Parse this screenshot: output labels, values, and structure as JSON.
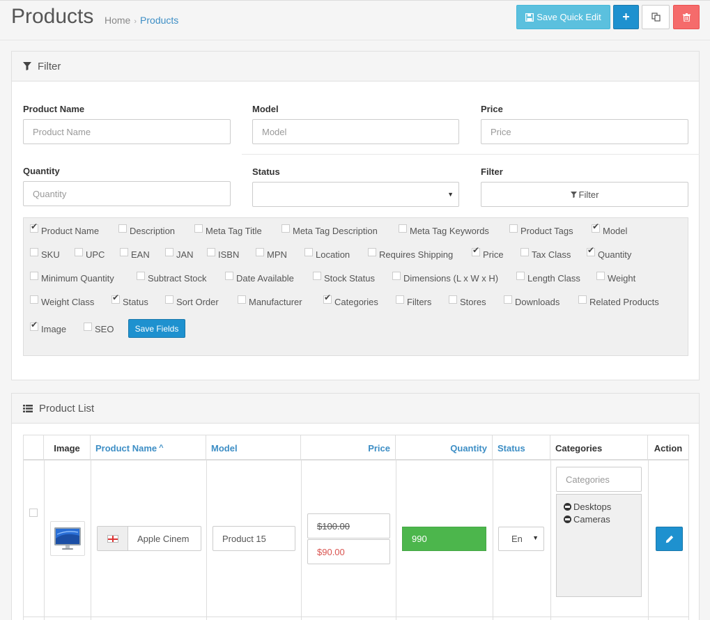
{
  "header": {
    "title": "Products",
    "breadcrumb": [
      "Home",
      "Products"
    ],
    "save_quick_edit": "Save Quick Edit"
  },
  "filter": {
    "heading": "Filter",
    "product_name_label": "Product Name",
    "product_name_placeholder": "Product Name",
    "model_label": "Model",
    "model_placeholder": "Model",
    "price_label": "Price",
    "price_placeholder": "Price",
    "quantity_label": "Quantity",
    "quantity_placeholder": "Quantity",
    "status_label": "Status",
    "filter_label": "Filter",
    "filter_button": "Filter",
    "save_fields": "Save Fields",
    "fields": [
      {
        "label": "Product Name",
        "checked": true
      },
      {
        "label": "Description",
        "checked": false
      },
      {
        "label": "Meta Tag Title",
        "checked": false
      },
      {
        "label": "Meta Tag Description",
        "checked": false
      },
      {
        "label": "Meta Tag Keywords",
        "checked": false
      },
      {
        "label": "Product Tags",
        "checked": false
      },
      {
        "label": "Model",
        "checked": true
      },
      {
        "label": "SKU",
        "checked": false
      },
      {
        "label": "UPC",
        "checked": false
      },
      {
        "label": "EAN",
        "checked": false
      },
      {
        "label": "JAN",
        "checked": false
      },
      {
        "label": "ISBN",
        "checked": false
      },
      {
        "label": "MPN",
        "checked": false
      },
      {
        "label": "Location",
        "checked": false
      },
      {
        "label": "Requires Shipping",
        "checked": false
      },
      {
        "label": "Price",
        "checked": true
      },
      {
        "label": "Tax Class",
        "checked": false
      },
      {
        "label": "Quantity",
        "checked": true
      },
      {
        "label": "Minimum Quantity",
        "checked": false
      },
      {
        "label": "Subtract Stock",
        "checked": false
      },
      {
        "label": "Date Available",
        "checked": false
      },
      {
        "label": "Stock Status",
        "checked": false
      },
      {
        "label": "Dimensions (L x W x H)",
        "checked": false
      },
      {
        "label": "Length Class",
        "checked": false
      },
      {
        "label": "Weight",
        "checked": false
      },
      {
        "label": "Weight Class",
        "checked": false
      },
      {
        "label": "Status",
        "checked": true
      },
      {
        "label": "Sort Order",
        "checked": false
      },
      {
        "label": "Manufacturer",
        "checked": false
      },
      {
        "label": "Categories",
        "checked": true
      },
      {
        "label": "Filters",
        "checked": false
      },
      {
        "label": "Stores",
        "checked": false
      },
      {
        "label": "Downloads",
        "checked": false
      },
      {
        "label": "Related Products",
        "checked": false
      },
      {
        "label": "Image",
        "checked": true
      },
      {
        "label": "SEO",
        "checked": false
      }
    ]
  },
  "list": {
    "heading": "Product List",
    "columns": {
      "image": "Image",
      "product_name": "Product Name",
      "model": "Model",
      "price": "Price",
      "quantity": "Quantity",
      "status": "Status",
      "categories": "Categories",
      "action": "Action"
    },
    "sort_indicator": "^",
    "row": {
      "name": "Apple Cinem",
      "model": "Product 15",
      "price_old": "$100.00",
      "price_special": "$90.00",
      "quantity": "990",
      "status": "En",
      "categories_placeholder": "Categories",
      "categories": [
        "Desktops",
        "Cameras"
      ]
    }
  },
  "colors": {
    "primary": "#1e91cf",
    "info": "#5bc0de",
    "danger": "#f56b6b",
    "success": "#4cb64c",
    "link": "#3d8ec5",
    "special_price": "#d9534f"
  }
}
